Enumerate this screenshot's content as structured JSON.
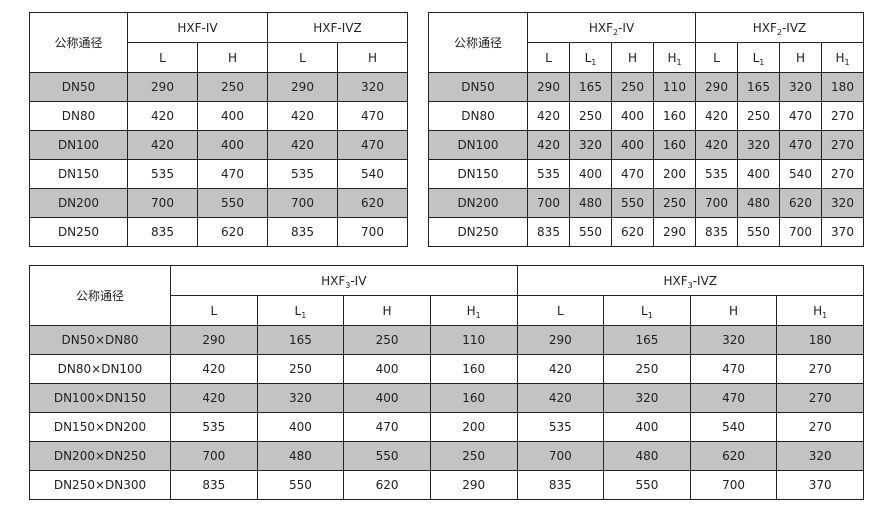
{
  "shade_color": "#c3c3c3",
  "tables": [
    {
      "corner": "公称通径",
      "groups": [
        {
          "base": "HXF",
          "sub": "",
          "suffix": "-IV"
        },
        {
          "base": "HXF",
          "sub": "",
          "suffix": "-IVZ"
        }
      ],
      "columns": [
        {
          "base": "L",
          "sub": ""
        },
        {
          "base": "H",
          "sub": ""
        },
        {
          "base": "L",
          "sub": ""
        },
        {
          "base": "H",
          "sub": ""
        }
      ],
      "rows": [
        {
          "label": "DN50",
          "values": [
            "290",
            "250",
            "290",
            "320"
          ]
        },
        {
          "label": "DN80",
          "values": [
            "420",
            "400",
            "420",
            "470"
          ]
        },
        {
          "label": "DN100",
          "values": [
            "420",
            "400",
            "420",
            "470"
          ]
        },
        {
          "label": "DN150",
          "values": [
            "535",
            "470",
            "535",
            "540"
          ]
        },
        {
          "label": "DN200",
          "values": [
            "700",
            "550",
            "700",
            "620"
          ]
        },
        {
          "label": "DN250",
          "values": [
            "835",
            "620",
            "835",
            "700"
          ]
        }
      ]
    },
    {
      "corner": "公称通径",
      "groups": [
        {
          "base": "HXF",
          "sub": "2",
          "suffix": "-IV"
        },
        {
          "base": "HXF",
          "sub": "2",
          "suffix": "-IVZ"
        }
      ],
      "columns": [
        {
          "base": "L",
          "sub": ""
        },
        {
          "base": "L",
          "sub": "1"
        },
        {
          "base": "H",
          "sub": ""
        },
        {
          "base": "H",
          "sub": "1"
        },
        {
          "base": "L",
          "sub": ""
        },
        {
          "base": "L",
          "sub": "1"
        },
        {
          "base": "H",
          "sub": ""
        },
        {
          "base": "H",
          "sub": "1"
        }
      ],
      "rows": [
        {
          "label": "DN50",
          "values": [
            "290",
            "165",
            "250",
            "110",
            "290",
            "165",
            "320",
            "180"
          ]
        },
        {
          "label": "DN80",
          "values": [
            "420",
            "250",
            "400",
            "160",
            "420",
            "250",
            "470",
            "270"
          ]
        },
        {
          "label": "DN100",
          "values": [
            "420",
            "320",
            "400",
            "160",
            "420",
            "320",
            "470",
            "270"
          ]
        },
        {
          "label": "DN150",
          "values": [
            "535",
            "400",
            "470",
            "200",
            "535",
            "400",
            "540",
            "270"
          ]
        },
        {
          "label": "DN200",
          "values": [
            "700",
            "480",
            "550",
            "250",
            "700",
            "480",
            "620",
            "320"
          ]
        },
        {
          "label": "DN250",
          "values": [
            "835",
            "550",
            "620",
            "290",
            "835",
            "550",
            "700",
            "370"
          ]
        }
      ]
    },
    {
      "corner": "公称通径",
      "groups": [
        {
          "base": "HXF",
          "sub": "3",
          "suffix": "-IV"
        },
        {
          "base": "HXF",
          "sub": "3",
          "suffix": "-IVZ"
        }
      ],
      "columns": [
        {
          "base": "L",
          "sub": ""
        },
        {
          "base": "L",
          "sub": "1"
        },
        {
          "base": "H",
          "sub": ""
        },
        {
          "base": "H",
          "sub": "1"
        },
        {
          "base": "L",
          "sub": ""
        },
        {
          "base": "L",
          "sub": "1"
        },
        {
          "base": "H",
          "sub": ""
        },
        {
          "base": "H",
          "sub": "1"
        }
      ],
      "rows": [
        {
          "label": "DN50×DN80",
          "values": [
            "290",
            "165",
            "250",
            "110",
            "290",
            "165",
            "320",
            "180"
          ]
        },
        {
          "label": "DN80×DN100",
          "values": [
            "420",
            "250",
            "400",
            "160",
            "420",
            "250",
            "470",
            "270"
          ]
        },
        {
          "label": "DN100×DN150",
          "values": [
            "420",
            "320",
            "400",
            "160",
            "420",
            "320",
            "470",
            "270"
          ]
        },
        {
          "label": "DN150×DN200",
          "values": [
            "535",
            "400",
            "470",
            "200",
            "535",
            "400",
            "540",
            "270"
          ]
        },
        {
          "label": "DN200×DN250",
          "values": [
            "700",
            "480",
            "550",
            "250",
            "700",
            "480",
            "620",
            "320"
          ]
        },
        {
          "label": "DN250×DN300",
          "values": [
            "835",
            "550",
            "620",
            "290",
            "835",
            "550",
            "700",
            "370"
          ]
        }
      ]
    }
  ]
}
